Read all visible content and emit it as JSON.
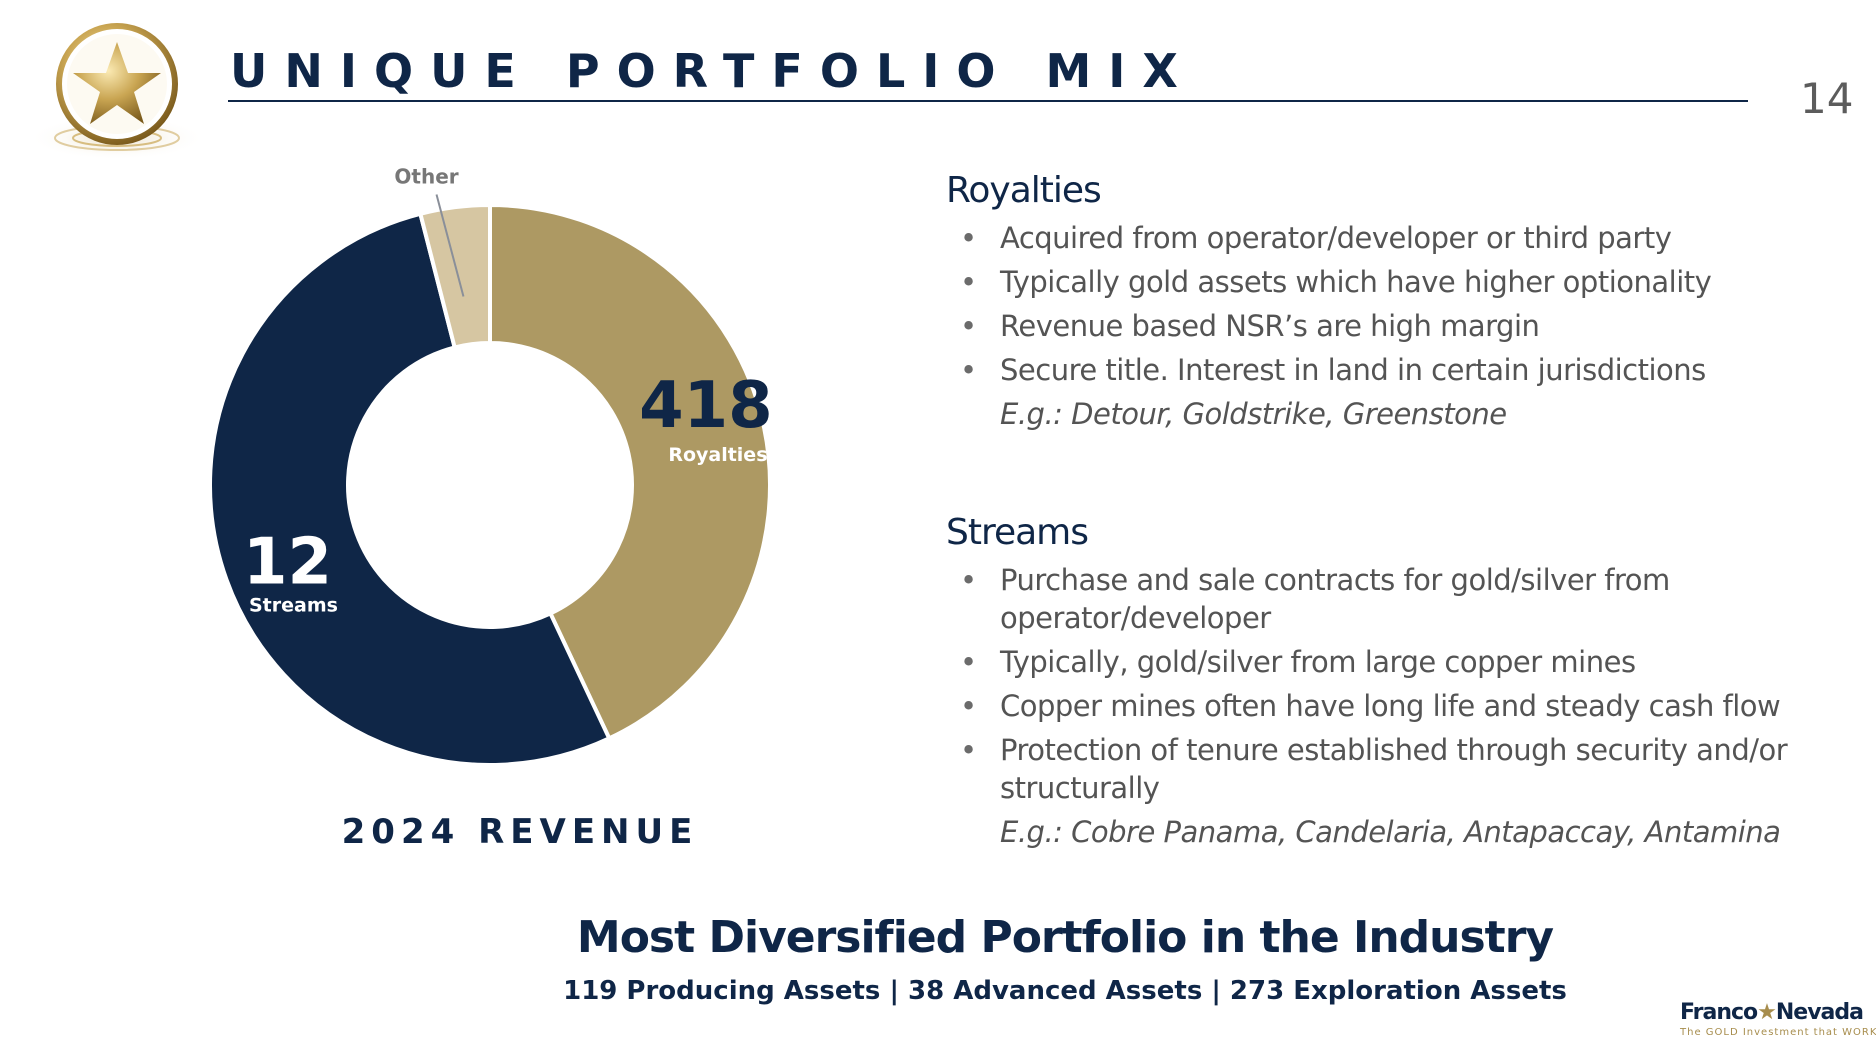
{
  "page": {
    "title": "UNIQUE PORTFOLIO MIX",
    "page_number": "14"
  },
  "logo": {
    "icon": "gold-star-icon"
  },
  "chart_data": {
    "type": "pie",
    "variant": "donut",
    "title": "2024 REVENUE",
    "slices": [
      {
        "name": "Royalties",
        "value": 418,
        "label_value": "418",
        "label_text": "Royalties",
        "percent": 43,
        "color": "#ad9963"
      },
      {
        "name": "Streams",
        "value": 12,
        "label_value": "12",
        "label_text": "Streams",
        "percent": 53,
        "color": "#0f2647"
      },
      {
        "name": "Other",
        "value": null,
        "label_value": "",
        "label_text": "Other",
        "percent": 4,
        "color": "#d6c6a2"
      }
    ]
  },
  "royalties": {
    "heading": "Royalties",
    "bullets": [
      "Acquired from operator/developer or third party",
      "Typically gold assets which have higher optionality",
      "Revenue based NSR’s are high margin",
      "Secure title. Interest in land in certain jurisdictions"
    ],
    "example": "E.g.: Detour, Goldstrike, Greenstone"
  },
  "streams": {
    "heading": "Streams",
    "bullets": [
      "Purchase and sale contracts for gold/silver from operator/developer",
      "Typically, gold/silver from large copper mines",
      "Copper mines often have long life and steady cash flow",
      "Protection of tenure established through security and/or structurally"
    ],
    "example": "E.g.: Cobre Panama, Candelaria, Antapaccay, Antamina"
  },
  "footer": {
    "heading": "Most Diversified Portfolio in the Industry",
    "subheading": "119 Producing Assets  |  38 Advanced Assets  |  273 Exploration Assets"
  },
  "brand": {
    "name_left": "Franco",
    "star": "★",
    "name_right": "Nevada",
    "tagline": "The GOLD Investment that WORKS"
  },
  "colors": {
    "navy": "#0f2647",
    "gold": "#ad9963",
    "light_gold": "#d6c6a2",
    "text_gray": "#545454"
  }
}
